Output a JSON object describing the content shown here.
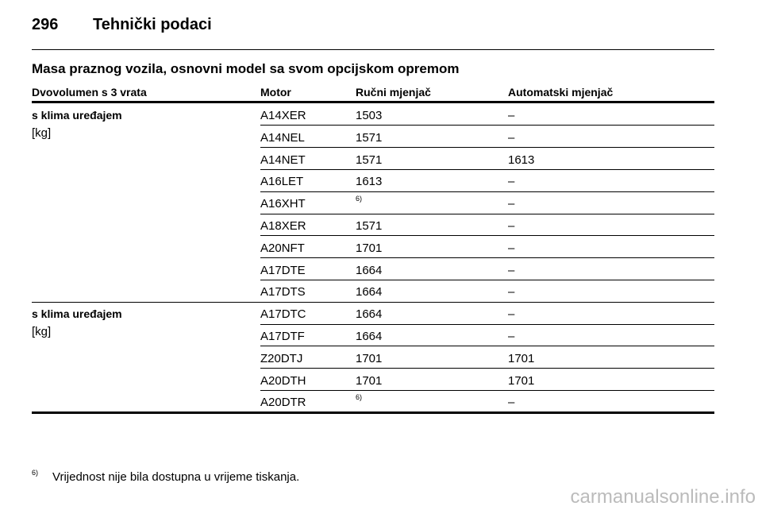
{
  "header": {
    "page_number": "296",
    "title": "Tehnički podaci"
  },
  "section_title": "Masa praznog vozila, osnovni model sa svom opcijskom opremom",
  "table": {
    "columns": [
      "Dvovolumen s 3 vrata",
      "Motor",
      "Ručni mjenjač",
      "Automatski mjenjač"
    ],
    "groups": [
      {
        "label": "s klima uređajem",
        "unit": "[kg]",
        "rows": [
          [
            "A14XER",
            "1503",
            "–"
          ],
          [
            "A14NEL",
            "1571",
            "–"
          ],
          [
            "A14NET",
            "1571",
            "1613"
          ],
          [
            "A16LET",
            "1613",
            "–"
          ],
          [
            "A16XHT",
            "6)",
            "–"
          ],
          [
            "A18XER",
            "1571",
            "–"
          ],
          [
            "A20NFT",
            "1701",
            "–"
          ],
          [
            "A17DTE",
            "1664",
            "–"
          ],
          [
            "A17DTS",
            "1664",
            "–"
          ]
        ]
      },
      {
        "label": "s klima uređajem",
        "unit": "[kg]",
        "rows": [
          [
            "A17DTC",
            "1664",
            "–"
          ],
          [
            "A17DTF",
            "1664",
            "–"
          ],
          [
            "Z20DTJ",
            "1701",
            "1701"
          ],
          [
            "A20DTH",
            "1701",
            "1701"
          ],
          [
            "A20DTR",
            "6)",
            "–"
          ]
        ]
      }
    ]
  },
  "footnote": {
    "marker": "6)",
    "text": "Vrijednost nije bila dostupna u vrijeme tiskanja."
  },
  "watermark": "carmanualsonline.info"
}
